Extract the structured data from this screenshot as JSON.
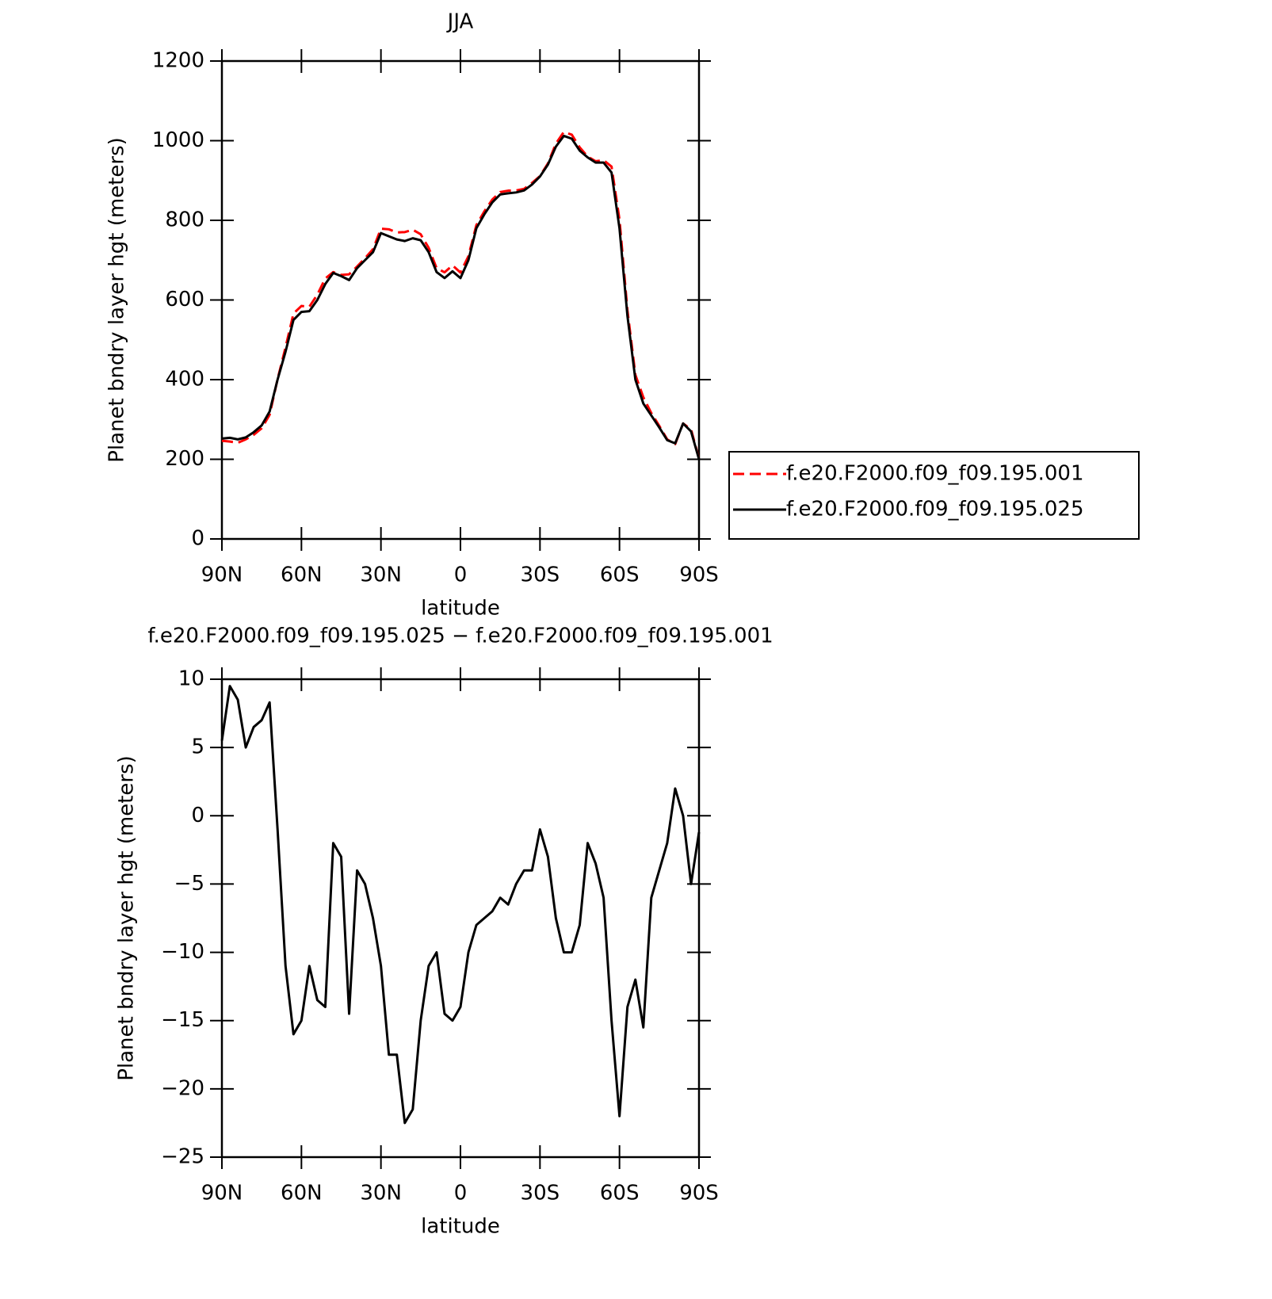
{
  "chart_data": [
    {
      "type": "line",
      "title": "JJA",
      "xlabel": "latitude",
      "ylabel": "Planet bndry layer hgt (meters)",
      "x": [
        90,
        87,
        84,
        81,
        78,
        75,
        72,
        69,
        66,
        63,
        60,
        57,
        54,
        51,
        48,
        45,
        42,
        39,
        36,
        33,
        30,
        27,
        24,
        21,
        18,
        15,
        12,
        9,
        6,
        3,
        0,
        -3,
        -6,
        -9,
        -12,
        -15,
        -18,
        -21,
        -24,
        -27,
        -30,
        -33,
        -36,
        -39,
        -42,
        -45,
        -48,
        -51,
        -54,
        -57,
        -60,
        -63,
        -66,
        -69,
        -72,
        -75,
        -78,
        -81,
        -84,
        -87,
        -90
      ],
      "series": [
        {
          "name": "f.e20.F2000.f09_f09.195.001",
          "color": "#ff0000",
          "dash": "dashed",
          "values": [
            246.5,
            244.5,
            241.5,
            250,
            261.5,
            278,
            311.7,
            401,
            481,
            566,
            585,
            583,
            613.5,
            654,
            670,
            663,
            664.5,
            684,
            705,
            727.5,
            779,
            777.5,
            769.5,
            770.5,
            776.5,
            765,
            731,
            680,
            669.5,
            687,
            669,
            710,
            788,
            822.5,
            852,
            871,
            874.5,
            875,
            879,
            894,
            911,
            943,
            992.5,
            1022,
            1015,
            983,
            960,
            948.5,
            951,
            935,
            802,
            574,
            412,
            355.5,
            316,
            284,
            250,
            238,
            290,
            275,
            201.2
          ]
        },
        {
          "name": "f.e20.F2000.f09_f09.195.025",
          "color": "#000000",
          "dash": "solid",
          "values": [
            252,
            254,
            250,
            255,
            268,
            285,
            320,
            400,
            470,
            550,
            570,
            572,
            600,
            640,
            668,
            660,
            650,
            680,
            700,
            720,
            768,
            760,
            752,
            748,
            755,
            750,
            720,
            670,
            655,
            672,
            655,
            700,
            780,
            815,
            845,
            865,
            868,
            870,
            875,
            890,
            910,
            940,
            985,
            1012,
            1005,
            975,
            958,
            945,
            945,
            920,
            780,
            560,
            400,
            340,
            310,
            280,
            248,
            240,
            290,
            270,
            200
          ]
        }
      ],
      "xlim": [
        90,
        -90
      ],
      "xticks": [
        {
          "value": 90,
          "label": "90N"
        },
        {
          "value": 60,
          "label": "60N"
        },
        {
          "value": 30,
          "label": "30N"
        },
        0,
        {
          "value": -30,
          "label": "30S"
        },
        {
          "value": -60,
          "label": "60S"
        },
        {
          "value": -90,
          "label": "90S"
        }
      ],
      "ylim": [
        0,
        1200
      ],
      "yticks": [
        0,
        200,
        400,
        600,
        800,
        1000,
        1200
      ],
      "legend": "right"
    },
    {
      "type": "line",
      "title": "f.e20.F2000.f09_f09.195.025 − f.e20.F2000.f09_f09.195.001",
      "xlabel": "latitude",
      "ylabel": "Planet bndry layer hgt (meters)",
      "x": [
        90,
        87,
        84,
        81,
        78,
        75,
        72,
        69,
        66,
        63,
        60,
        57,
        54,
        51,
        48,
        45,
        42,
        39,
        36,
        33,
        30,
        27,
        24,
        21,
        18,
        15,
        12,
        9,
        6,
        3,
        0,
        -3,
        -6,
        -9,
        -12,
        -15,
        -18,
        -21,
        -24,
        -27,
        -30,
        -33,
        -36,
        -39,
        -42,
        -45,
        -48,
        -51,
        -54,
        -57,
        -60,
        -63,
        -66,
        -69,
        -72,
        -75,
        -78,
        -81,
        -84,
        -87,
        -90
      ],
      "series": [
        {
          "name": null,
          "color": "#000000",
          "dash": "solid",
          "values": [
            5.5,
            9.5,
            8.5,
            5,
            6.5,
            7,
            8.3,
            -1,
            -11,
            -16,
            -15,
            -11,
            -13.5,
            -14,
            -2,
            -3,
            -14.5,
            -4,
            -5,
            -7.5,
            -11,
            -17.5,
            -17.5,
            -22.5,
            -21.5,
            -15,
            -11,
            -10,
            -14.5,
            -15,
            -14,
            -10,
            -8,
            -7.5,
            -7,
            -6,
            -6.5,
            -5,
            -4,
            -4,
            -1,
            -3,
            -7.5,
            -10,
            -10,
            -8,
            -2,
            -3.5,
            -6,
            -15,
            -22,
            -14,
            -12,
            -15.5,
            -6,
            -4,
            -2,
            2,
            0,
            -5,
            -1.2
          ]
        }
      ],
      "xlim": [
        90,
        -90
      ],
      "xticks": [
        {
          "value": 90,
          "label": "90N"
        },
        {
          "value": 60,
          "label": "60N"
        },
        {
          "value": 30,
          "label": "30N"
        },
        0,
        {
          "value": -30,
          "label": "30S"
        },
        {
          "value": -60,
          "label": "60S"
        },
        {
          "value": -90,
          "label": "90S"
        }
      ],
      "ylim": [
        -25,
        10
      ],
      "yticks": [
        {
          "value": -25,
          "label": "−25"
        },
        {
          "value": -20,
          "label": "−20"
        },
        {
          "value": -15,
          "label": "−15"
        },
        {
          "value": -10,
          "label": "−10"
        },
        {
          "value": -5,
          "label": "−5"
        },
        0,
        5,
        10
      ]
    }
  ]
}
